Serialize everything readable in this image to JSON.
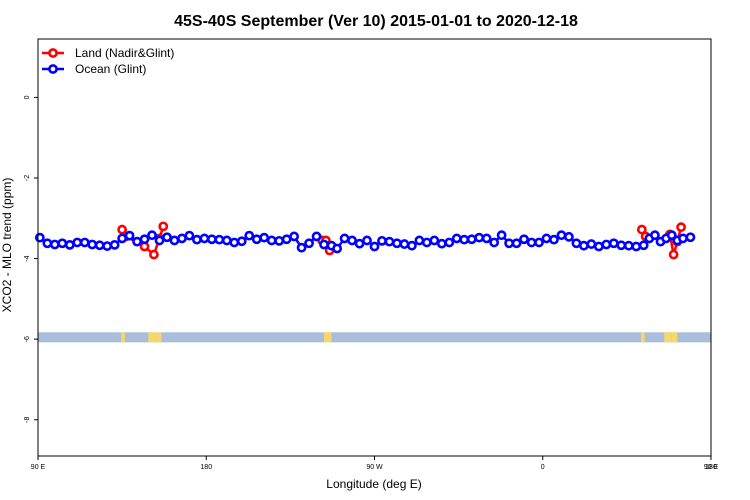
{
  "chart_data": {
    "type": "line",
    "title": "45S-40S September (Ver 10)   2015-01-01 to 2020-12-18",
    "xlabel": "Longitude (deg E)",
    "ylabel": "XCO2 - MLO trend (ppm)",
    "xlim": [
      90,
      450
    ],
    "ylim": [
      -8.9,
      1.45
    ],
    "x_ticks": [
      {
        "value": 90,
        "label": "90 E"
      },
      {
        "value": 180,
        "label": "180"
      },
      {
        "value": 270,
        "label": "90 W"
      },
      {
        "value": 360,
        "label": "0"
      },
      {
        "value": 450,
        "label": "90 E"
      },
      {
        "value": 540,
        "label": "180"
      }
    ],
    "y_ticks": [
      {
        "value": 0,
        "label": "0"
      },
      {
        "value": -2,
        "label": "-2"
      },
      {
        "value": -4,
        "label": "-4"
      },
      {
        "value": -6,
        "label": "-6"
      },
      {
        "value": -8,
        "label": "-8"
      }
    ],
    "legend": {
      "position": "top-left"
    },
    "series": [
      {
        "name": "Land (Nadir&Glint)",
        "color": "#ff0000",
        "segments": [
          [
            [
              135,
              -3.28
            ],
            [
              137,
              -3.45
            ],
            [
              147,
              -3.7
            ],
            [
              152,
              -3.9
            ],
            [
              155,
              -3.5
            ],
            [
              157,
              -3.2
            ]
          ],
          [
            [
              242,
              -3.55
            ],
            [
              244,
              -3.55
            ],
            [
              246,
              -3.8
            ]
          ],
          [
            [
              413,
              -3.28
            ],
            [
              415,
              -3.45
            ]
          ],
          [
            [
              428,
              -3.4
            ],
            [
              430,
              -3.9
            ],
            [
              432,
              -3.58
            ],
            [
              434,
              -3.22
            ]
          ]
        ]
      },
      {
        "name": "Ocean (Glint)",
        "color": "#0000ff",
        "points": [
          [
            91,
            -3.48
          ],
          [
            95,
            -3.62
          ],
          [
            99,
            -3.65
          ],
          [
            103,
            -3.62
          ],
          [
            107,
            -3.66
          ],
          [
            111,
            -3.6
          ],
          [
            115,
            -3.6
          ],
          [
            119,
            -3.65
          ],
          [
            123,
            -3.67
          ],
          [
            127,
            -3.69
          ],
          [
            131,
            -3.66
          ],
          [
            135,
            -3.5
          ],
          [
            139,
            -3.43
          ],
          [
            143,
            -3.58
          ],
          [
            147,
            -3.52
          ],
          [
            151,
            -3.42
          ],
          [
            155,
            -3.55
          ],
          [
            159,
            -3.47
          ],
          [
            163,
            -3.55
          ],
          [
            167,
            -3.5
          ],
          [
            171,
            -3.43
          ],
          [
            175,
            -3.53
          ],
          [
            179,
            -3.5
          ],
          [
            183,
            -3.52
          ],
          [
            187,
            -3.53
          ],
          [
            191,
            -3.55
          ],
          [
            195,
            -3.6
          ],
          [
            199,
            -3.57
          ],
          [
            203,
            -3.43
          ],
          [
            207,
            -3.52
          ],
          [
            211,
            -3.48
          ],
          [
            215,
            -3.55
          ],
          [
            219,
            -3.56
          ],
          [
            223,
            -3.52
          ],
          [
            227,
            -3.45
          ],
          [
            231,
            -3.73
          ],
          [
            235,
            -3.62
          ],
          [
            239,
            -3.45
          ],
          [
            243,
            -3.65
          ],
          [
            247,
            -3.68
          ],
          [
            250,
            -3.75
          ],
          [
            254,
            -3.5
          ],
          [
            258,
            -3.55
          ],
          [
            262,
            -3.63
          ],
          [
            266,
            -3.55
          ],
          [
            270,
            -3.7
          ],
          [
            274,
            -3.56
          ],
          [
            278,
            -3.58
          ],
          [
            282,
            -3.62
          ],
          [
            286,
            -3.64
          ],
          [
            290,
            -3.68
          ],
          [
            294,
            -3.55
          ],
          [
            298,
            -3.6
          ],
          [
            302,
            -3.55
          ],
          [
            306,
            -3.63
          ],
          [
            310,
            -3.6
          ],
          [
            314,
            -3.5
          ],
          [
            318,
            -3.53
          ],
          [
            322,
            -3.52
          ],
          [
            326,
            -3.48
          ],
          [
            330,
            -3.5
          ],
          [
            334,
            -3.6
          ],
          [
            338,
            -3.42
          ],
          [
            342,
            -3.62
          ],
          [
            346,
            -3.62
          ],
          [
            350,
            -3.52
          ],
          [
            354,
            -3.6
          ],
          [
            358,
            -3.6
          ],
          [
            362,
            -3.5
          ],
          [
            366,
            -3.53
          ],
          [
            370,
            -3.42
          ],
          [
            374,
            -3.46
          ],
          [
            378,
            -3.62
          ],
          [
            382,
            -3.68
          ],
          [
            386,
            -3.64
          ],
          [
            390,
            -3.7
          ],
          [
            394,
            -3.65
          ],
          [
            398,
            -3.62
          ],
          [
            402,
            -3.67
          ],
          [
            406,
            -3.68
          ],
          [
            410,
            -3.7
          ],
          [
            414,
            -3.67
          ],
          [
            417,
            -3.5
          ],
          [
            420,
            -3.42
          ],
          [
            423,
            -3.58
          ],
          [
            426,
            -3.5
          ],
          [
            429,
            -3.42
          ],
          [
            432,
            -3.55
          ],
          [
            435,
            -3.5
          ],
          [
            439,
            -3.47
          ]
        ]
      }
    ],
    "band": {
      "y_from": -6.08,
      "y_to": -5.83,
      "color": "#a9bddc",
      "land_color": "#f5d76e",
      "land_spans": [
        [
          134.5,
          136.5
        ],
        [
          149,
          153
        ],
        [
          153,
          156
        ],
        [
          243,
          247
        ],
        [
          412.5,
          414.5
        ],
        [
          425,
          429
        ],
        [
          429,
          432
        ]
      ]
    }
  }
}
